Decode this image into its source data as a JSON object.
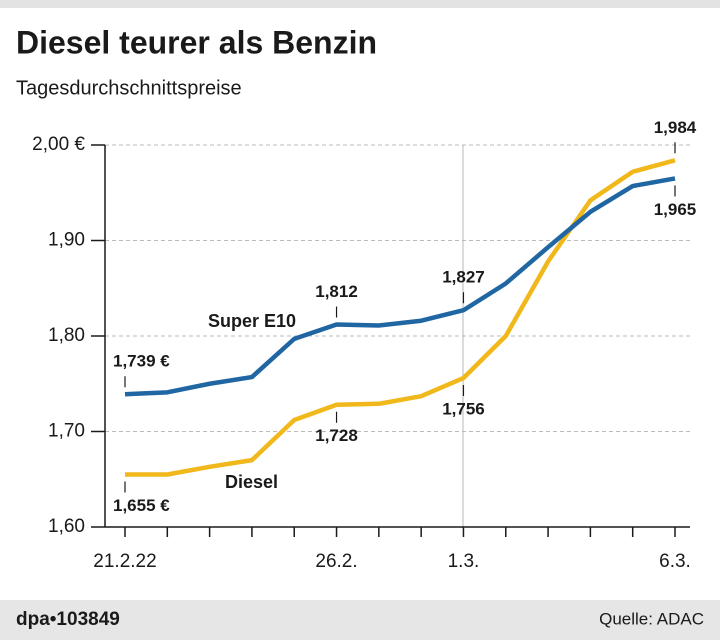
{
  "chart_data": {
    "type": "line",
    "title": "Diesel teurer als Benzin",
    "subtitle": "Tagesdurchschnittspreise",
    "categories": [
      "21.2.22",
      null,
      null,
      null,
      null,
      "26.2.",
      null,
      null,
      "1.3.",
      null,
      null,
      null,
      null,
      "6.3."
    ],
    "series": [
      {
        "name": "Super E10",
        "color": "#1f66a3",
        "values": [
          1.739,
          1.741,
          1.75,
          1.757,
          1.797,
          1.812,
          1.811,
          1.816,
          1.827,
          1.855,
          1.893,
          1.93,
          1.957,
          1.965
        ],
        "value_labels": [
          "1,739 €",
          null,
          null,
          null,
          null,
          "1,812",
          null,
          null,
          "1,827",
          null,
          null,
          null,
          null,
          "1,965"
        ]
      },
      {
        "name": "Diesel",
        "color": "#f0b81a",
        "values": [
          1.655,
          1.655,
          1.663,
          1.67,
          1.712,
          1.728,
          1.729,
          1.737,
          1.756,
          1.8,
          1.878,
          1.942,
          1.972,
          1.984
        ],
        "value_labels": [
          "1,655 €",
          null,
          null,
          null,
          null,
          "1,728",
          null,
          null,
          "1,756",
          null,
          null,
          null,
          null,
          "1,984"
        ]
      }
    ],
    "ylim": [
      1.6,
      2.0
    ],
    "yticks": [
      {
        "value": 1.6,
        "label": "1,60"
      },
      {
        "value": 1.7,
        "label": "1,70"
      },
      {
        "value": 1.8,
        "label": "1,80"
      },
      {
        "value": 1.9,
        "label": "1,90"
      },
      {
        "value": 2.0,
        "label": "2,00 €"
      }
    ],
    "grid": true
  },
  "footer": {
    "id": "dpa•103849",
    "source": "Quelle: ADAC"
  }
}
